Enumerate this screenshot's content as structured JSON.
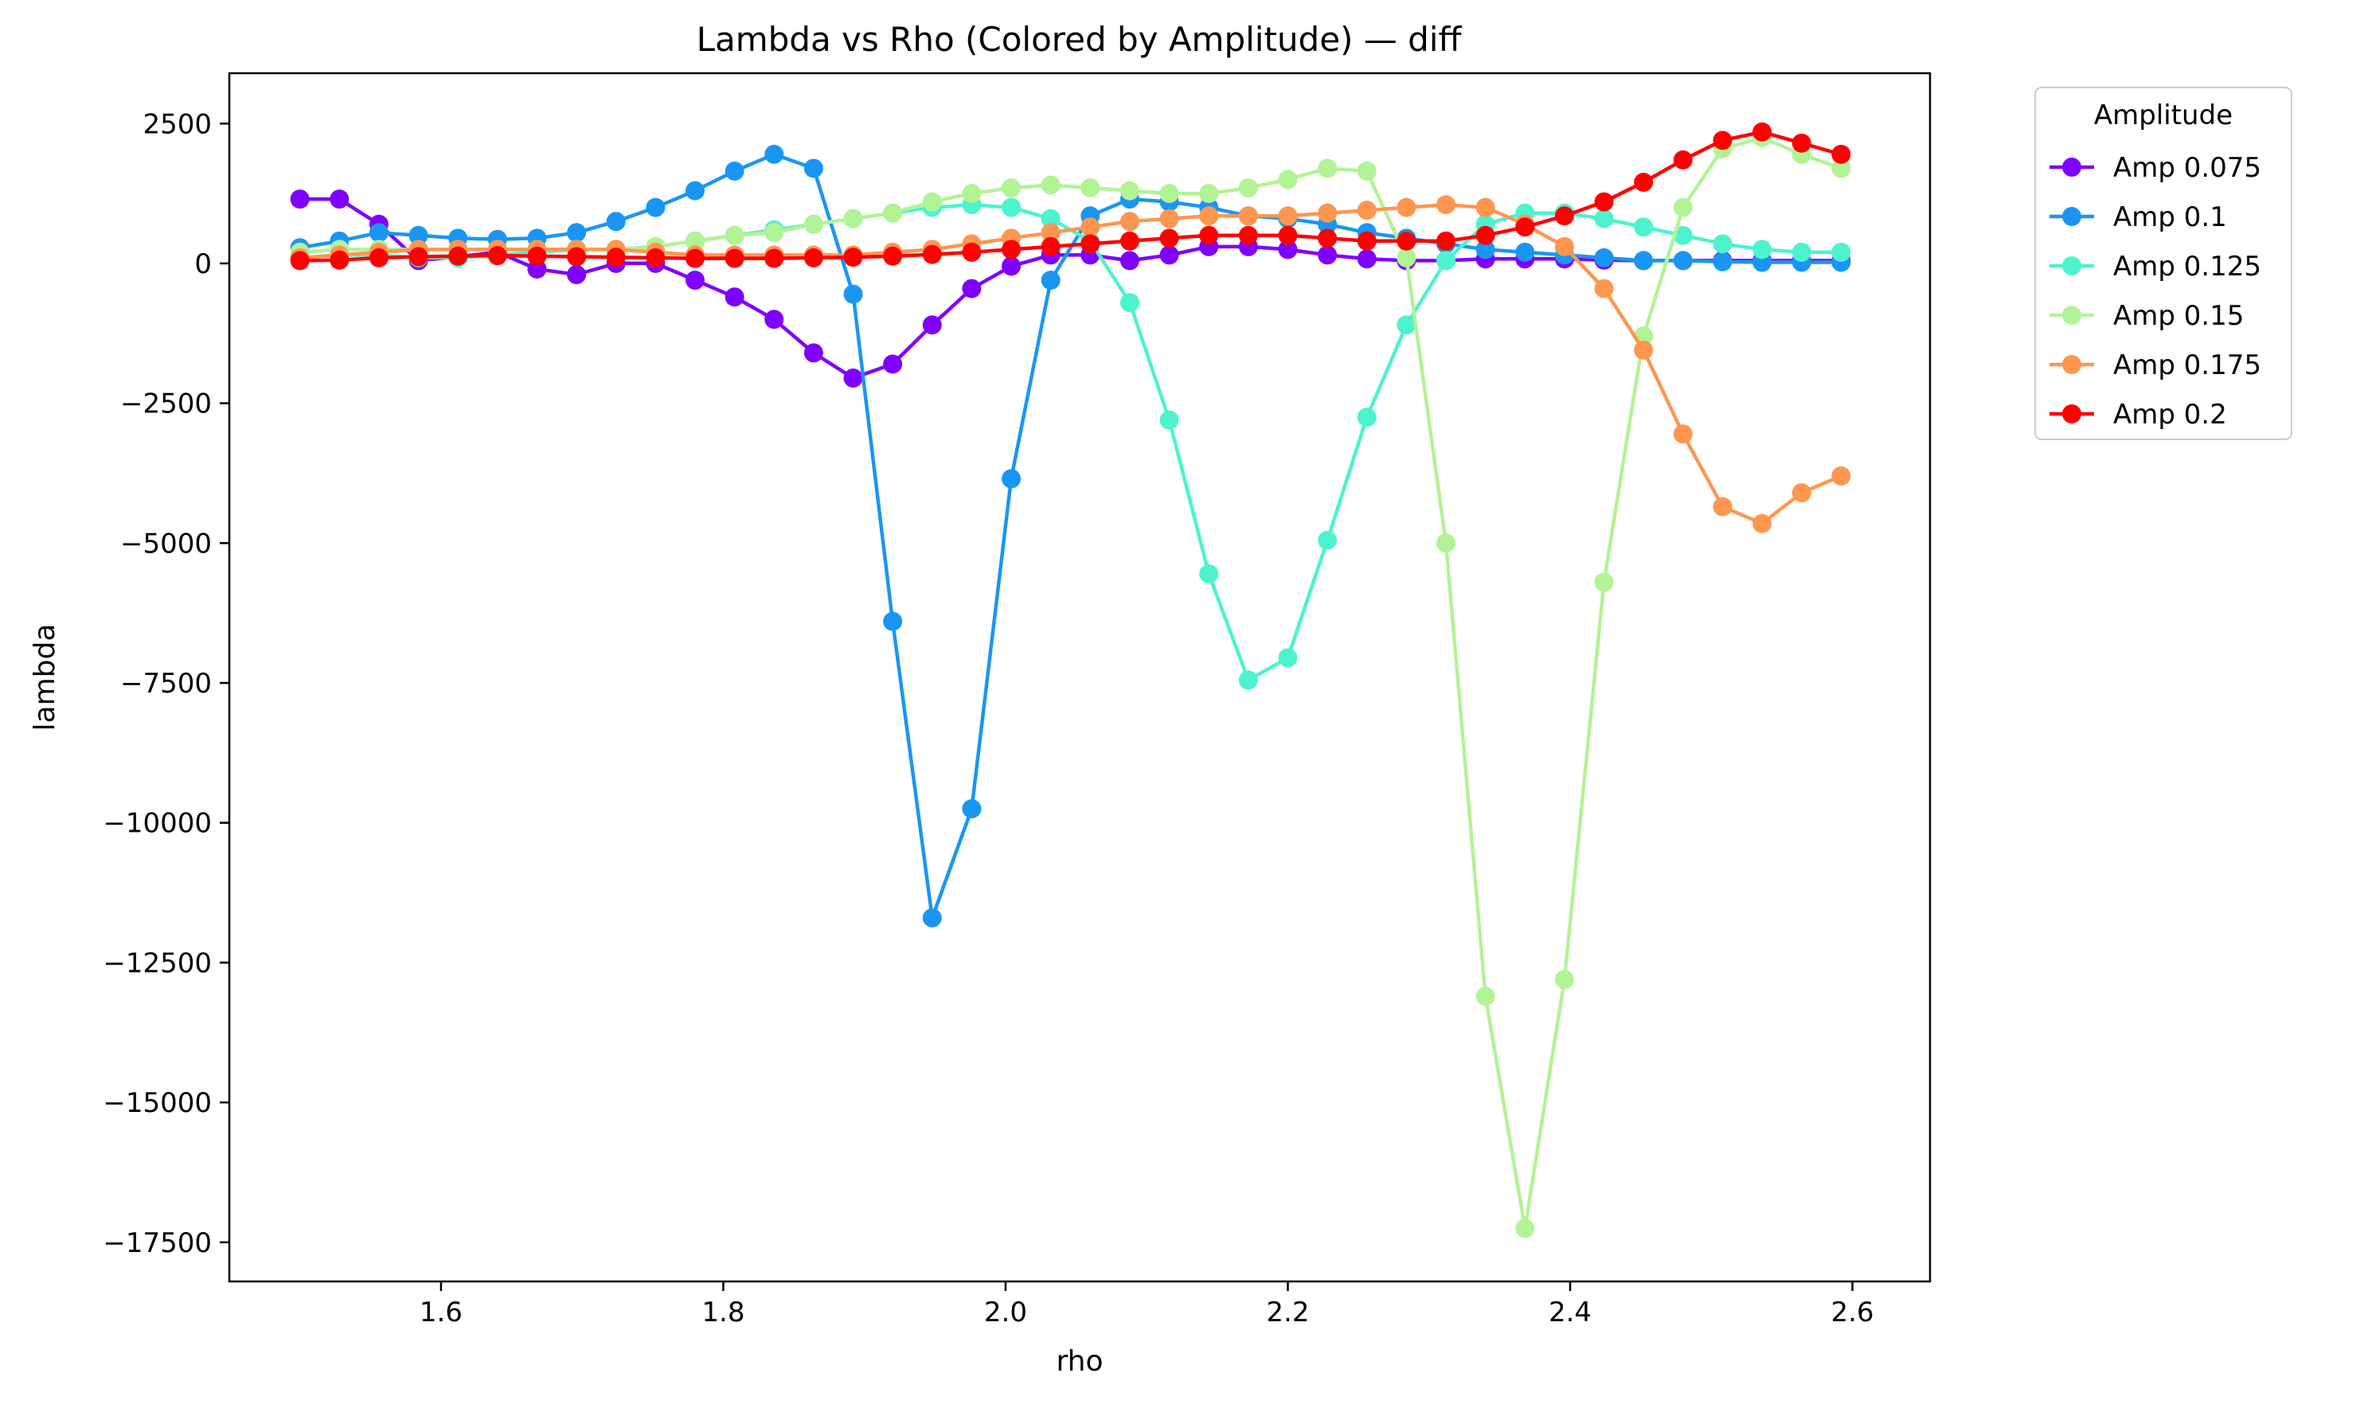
{
  "chart_data": {
    "type": "line",
    "title": "Lambda vs Rho (Colored by Amplitude) — diff",
    "xlabel": "rho",
    "ylabel": "lambda",
    "xlim": [
      1.45,
      2.655
    ],
    "ylim": [
      -18200,
      3400
    ],
    "xticks": [
      1.6,
      1.8,
      2.0,
      2.2,
      2.4,
      2.6
    ],
    "xtick_labels": [
      "1.6",
      "1.8",
      "2.0",
      "2.2",
      "2.4",
      "2.6"
    ],
    "yticks": [
      2500,
      0,
      -2500,
      -5000,
      -7500,
      -10000,
      -12500,
      -15000,
      -17500
    ],
    "ytick_labels": [
      "2500",
      "0",
      "−2500",
      "−5000",
      "−7500",
      "−10000",
      "−12500",
      "−15000",
      "−17500"
    ],
    "grid": false,
    "legend_title": "Amplitude",
    "legend_position": "outside-top-right",
    "x": [
      1.5,
      1.528,
      1.556,
      1.584,
      1.612,
      1.64,
      1.668,
      1.696,
      1.724,
      1.752,
      1.78,
      1.808,
      1.836,
      1.864,
      1.892,
      1.92,
      1.948,
      1.976,
      2.004,
      2.032,
      2.06,
      2.088,
      2.116,
      2.144,
      2.172,
      2.2,
      2.228,
      2.256,
      2.284,
      2.312,
      2.34,
      2.368,
      2.396,
      2.424,
      2.452,
      2.48,
      2.508,
      2.536,
      2.564,
      2.592
    ],
    "series": [
      {
        "name": "Amp 0.075",
        "color": "#8000ff",
        "values": [
          1150,
          1150,
          700,
          50,
          120,
          200,
          -100,
          -200,
          0,
          0,
          -300,
          -600,
          -1000,
          -1600,
          -2050,
          -1800,
          -1100,
          -450,
          -50,
          150,
          150,
          50,
          150,
          300,
          300,
          250,
          150,
          80,
          50,
          50,
          80,
          80,
          80,
          60,
          50,
          50,
          50,
          50,
          50,
          50
        ]
      },
      {
        "name": "Amp 0.1",
        "color": "#1996f3",
        "values": [
          280,
          400,
          550,
          500,
          450,
          430,
          450,
          550,
          750,
          1000,
          1300,
          1650,
          1950,
          1700,
          -550,
          -6400,
          -11700,
          -9750,
          -3850,
          -300,
          850,
          1150,
          1100,
          1000,
          850,
          800,
          700,
          550,
          450,
          350,
          250,
          200,
          150,
          100,
          50,
          50,
          30,
          20,
          20,
          20
        ]
      },
      {
        "name": "Amp 0.125",
        "color": "#4df3ce",
        "values": [
          100,
          150,
          150,
          100,
          100,
          150,
          200,
          250,
          250,
          300,
          400,
          500,
          600,
          700,
          800,
          900,
          1000,
          1050,
          1000,
          800,
          400,
          -700,
          -2800,
          -5550,
          -7450,
          -7050,
          -4950,
          -2750,
          -1100,
          50,
          700,
          900,
          900,
          800,
          650,
          500,
          350,
          250,
          200,
          200
        ]
      },
      {
        "name": "Amp 0.15",
        "color": "#b2f396",
        "values": [
          200,
          250,
          250,
          250,
          250,
          250,
          250,
          250,
          250,
          300,
          400,
          500,
          550,
          700,
          800,
          900,
          1100,
          1250,
          1350,
          1400,
          1350,
          1300,
          1250,
          1250,
          1350,
          1500,
          1700,
          1650,
          100,
          -5000,
          -13100,
          -17250,
          -12800,
          -5700,
          -1300,
          1000,
          2050,
          2250,
          1950,
          1700
        ]
      },
      {
        "name": "Amp 0.175",
        "color": "#ff964f",
        "values": [
          100,
          150,
          200,
          250,
          250,
          250,
          250,
          250,
          250,
          200,
          150,
          150,
          150,
          150,
          150,
          200,
          250,
          350,
          450,
          550,
          650,
          750,
          800,
          850,
          850,
          850,
          900,
          950,
          1000,
          1050,
          1000,
          700,
          300,
          -450,
          -1550,
          -3050,
          -4350,
          -4650,
          -4100,
          -3800
        ]
      },
      {
        "name": "Amp 0.2",
        "color": "#ff0000",
        "values": [
          50,
          60,
          100,
          120,
          130,
          140,
          130,
          120,
          110,
          100,
          90,
          90,
          90,
          100,
          110,
          130,
          160,
          200,
          250,
          300,
          350,
          400,
          450,
          500,
          500,
          500,
          450,
          400,
          400,
          400,
          500,
          650,
          850,
          1100,
          1450,
          1850,
          2200,
          2350,
          2150,
          1950
        ]
      }
    ]
  }
}
